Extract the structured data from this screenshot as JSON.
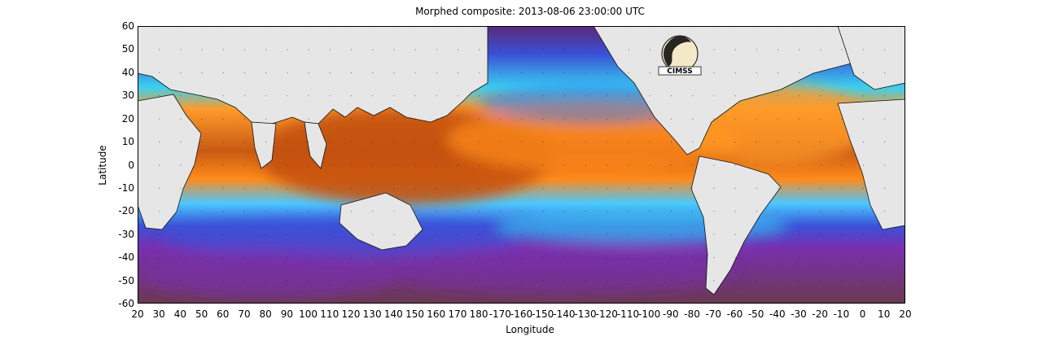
{
  "title": "Morphed composite: 2013-08-06 23:00:00 UTC",
  "xlabel": "Longitude",
  "ylabel": "Latitude",
  "logo_text": "CIMSS",
  "y_ticks": [
    "60",
    "50",
    "40",
    "30",
    "20",
    "10",
    "0",
    "-10",
    "-20",
    "-30",
    "-40",
    "-50",
    "-60"
  ],
  "x_ticks": [
    "20",
    "30",
    "40",
    "50",
    "60",
    "70",
    "80",
    "90",
    "100",
    "110",
    "120",
    "130",
    "140",
    "150",
    "160",
    "170",
    "180",
    "-170",
    "-160",
    "-150",
    "-140",
    "-130",
    "-120",
    "-110",
    "-100",
    "-90",
    "-80",
    "-70",
    "-60",
    "-50",
    "-40",
    "-30",
    "-20",
    "-10",
    "0",
    "10",
    "20"
  ],
  "colors": {
    "land": "#e6e6e6",
    "dry": "#4b1a6e",
    "purple": "#7a2fb0",
    "blue": "#2a6df0",
    "cyan": "#37d6f2",
    "green": "#8ff08a",
    "orange": "#ff8a1a",
    "brown": "#a34a10"
  }
}
